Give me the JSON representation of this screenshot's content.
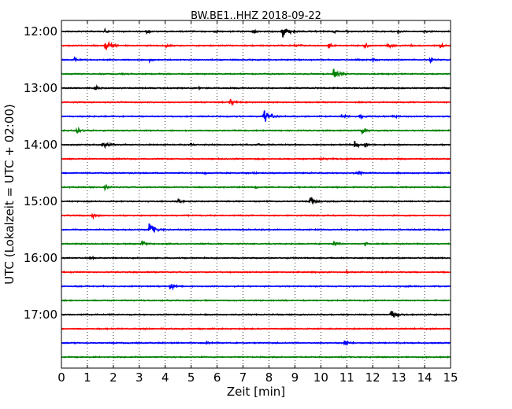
{
  "chart_data": {
    "type": "line",
    "title": "BW.BE1..HHZ 2018-09-22",
    "xlabel": "Zeit  [min]",
    "ylabel": "UTC (Lokalzeit = UTC + 02:00)",
    "xlim": [
      0,
      15
    ],
    "x_ticks": [
      "0",
      "1",
      "2",
      "3",
      "4",
      "5",
      "6",
      "7",
      "8",
      "9",
      "10",
      "11",
      "12",
      "13",
      "14",
      "15"
    ],
    "y_ticks": [
      "12:00",
      "13:00",
      "14:00",
      "15:00",
      "16:00",
      "17:00"
    ],
    "grid": "vertical dotted",
    "trace_colors": [
      "#000000",
      "#ff0000",
      "#0000ff",
      "#008000"
    ],
    "traces": [
      {
        "start": "12:00",
        "events": [
          [
            8.5,
            1.0
          ],
          [
            1.7,
            0.25
          ],
          [
            3.3,
            0.25
          ],
          [
            5.9,
            0.2
          ],
          [
            7.4,
            0.25
          ],
          [
            9.8,
            0.2
          ],
          [
            10.5,
            0.2
          ],
          [
            11.0,
            0.15
          ],
          [
            13.0,
            0.2
          ],
          [
            14.0,
            0.2
          ]
        ]
      },
      {
        "start": "12:15",
        "events": [
          [
            1.7,
            0.7
          ],
          [
            4.0,
            0.3
          ],
          [
            9.0,
            0.35
          ],
          [
            10.3,
            0.3
          ],
          [
            11.7,
            0.35
          ],
          [
            12.6,
            0.3
          ],
          [
            13.5,
            0.2
          ],
          [
            14.6,
            0.3
          ]
        ]
      },
      {
        "start": "12:30",
        "events": [
          [
            0.5,
            0.25
          ],
          [
            3.4,
            0.2
          ],
          [
            12.0,
            0.2
          ],
          [
            14.2,
            0.3
          ]
        ]
      },
      {
        "start": "12:45",
        "events": [
          [
            2.3,
            0.15
          ],
          [
            10.5,
            0.7
          ]
        ]
      },
      {
        "start": "13:00",
        "events": [
          [
            1.3,
            0.4
          ],
          [
            5.3,
            0.15
          ]
        ]
      },
      {
        "start": "13:15",
        "events": [
          [
            6.5,
            0.4
          ]
        ]
      },
      {
        "start": "13:30",
        "events": [
          [
            7.8,
            1.0
          ],
          [
            10.8,
            0.35
          ],
          [
            11.5,
            0.3
          ],
          [
            12.8,
            0.2
          ]
        ]
      },
      {
        "start": "13:45",
        "events": [
          [
            0.6,
            0.55
          ],
          [
            11.6,
            0.5
          ]
        ]
      },
      {
        "start": "14:00",
        "events": [
          [
            1.6,
            0.6
          ],
          [
            5.0,
            0.25
          ],
          [
            7.6,
            0.2
          ],
          [
            11.3,
            0.5
          ],
          [
            11.7,
            0.3
          ]
        ]
      },
      {
        "start": "14:15",
        "events": [
          [
            10.0,
            0.25
          ],
          [
            11.0,
            0.15
          ]
        ]
      },
      {
        "start": "14:30",
        "events": [
          [
            5.5,
            0.15
          ],
          [
            7.4,
            0.15
          ],
          [
            11.4,
            0.45
          ]
        ]
      },
      {
        "start": "14:45",
        "events": [
          [
            1.7,
            0.3
          ],
          [
            7.5,
            0.1
          ]
        ]
      },
      {
        "start": "15:00",
        "events": [
          [
            4.5,
            0.35
          ],
          [
            9.6,
            0.65
          ]
        ]
      },
      {
        "start": "15:15",
        "events": [
          [
            1.2,
            0.3
          ]
        ]
      },
      {
        "start": "15:30",
        "events": [
          [
            3.4,
            1.0
          ]
        ]
      },
      {
        "start": "15:45",
        "events": [
          [
            3.1,
            0.4
          ],
          [
            10.5,
            0.45
          ],
          [
            11.7,
            0.35
          ]
        ]
      },
      {
        "start": "16:00",
        "events": [
          [
            1.1,
            0.25
          ]
        ]
      },
      {
        "start": "16:15",
        "events": [
          [
            11.0,
            0.1
          ]
        ]
      },
      {
        "start": "16:30",
        "events": [
          [
            4.2,
            0.6
          ]
        ]
      },
      {
        "start": "16:45",
        "events": []
      },
      {
        "start": "17:00",
        "events": [
          [
            12.7,
            0.65
          ]
        ]
      },
      {
        "start": "17:15",
        "events": []
      },
      {
        "start": "17:30",
        "events": [
          [
            5.6,
            0.2
          ],
          [
            10.9,
            0.45
          ]
        ]
      },
      {
        "start": "17:45",
        "events": []
      }
    ]
  }
}
